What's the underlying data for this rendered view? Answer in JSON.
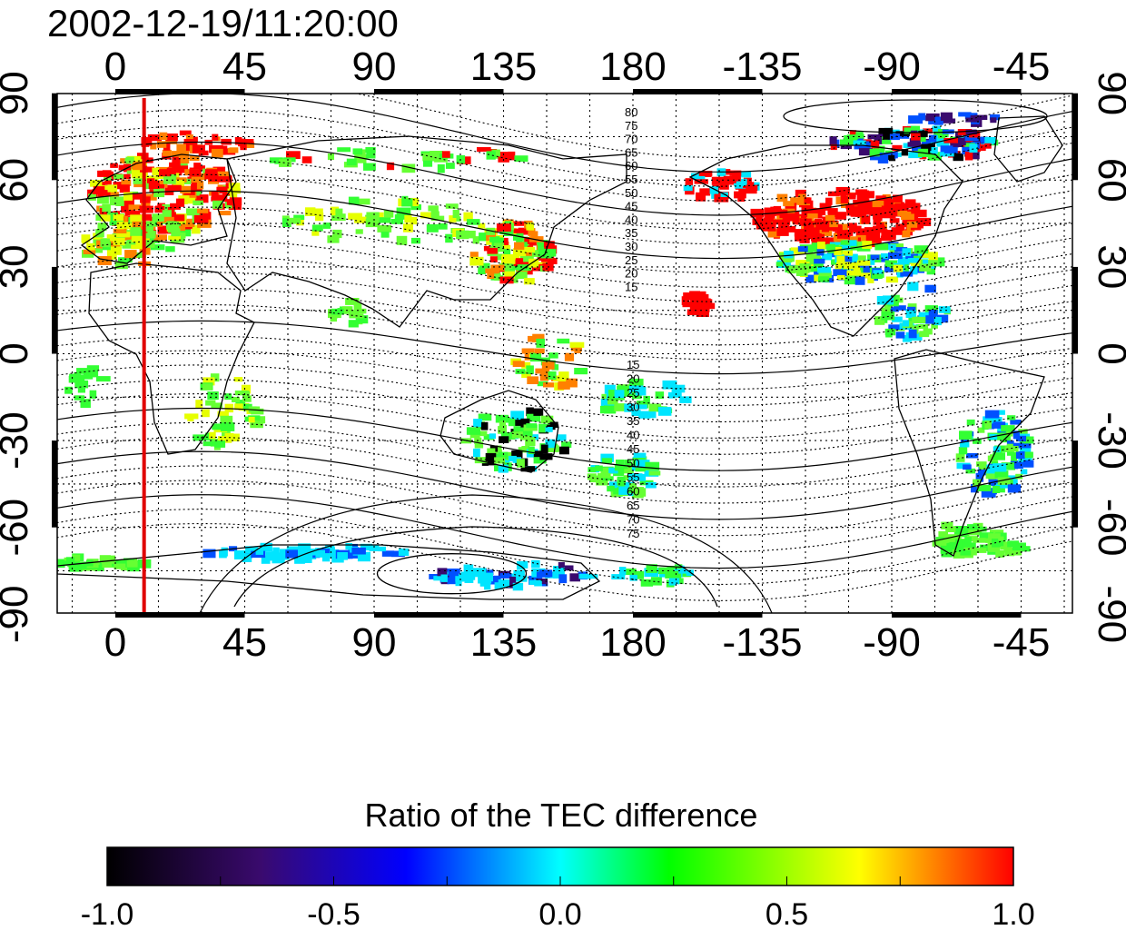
{
  "title": "2002-12-19/11:20:00",
  "map": {
    "top_x_ticks": [
      "0",
      "45",
      "90",
      "135",
      "180",
      "-135",
      "-90",
      "-45"
    ],
    "bottom_x_ticks": [
      "0",
      "45",
      "90",
      "135",
      "180",
      "-135",
      "-90",
      "-45"
    ],
    "left_y_ticks": [
      "90",
      "60",
      "30",
      "0",
      "-30",
      "-60",
      "-90"
    ],
    "right_y_ticks": [
      "90",
      "60",
      "30",
      "0",
      "-30",
      "-60",
      "-90"
    ],
    "north_contour_labels": [
      "80",
      "75",
      "70",
      "65",
      "60",
      "55",
      "50",
      "45",
      "40",
      "35",
      "30",
      "25",
      "20",
      "15"
    ],
    "south_contour_labels": [
      "15",
      "20",
      "25",
      "30",
      "35",
      "40",
      "45",
      "50",
      "55",
      "60",
      "65",
      "70",
      "75"
    ],
    "red_line_longitude": 10
  },
  "colorbar": {
    "label": "Ratio of the TEC difference",
    "tick_labels": [
      "-1.0",
      "-0.5",
      "0.0",
      "0.5",
      "1.0"
    ],
    "min": -1.0,
    "max": 1.0,
    "colors": [
      "#000000",
      "#3a0a6e",
      "#0000ff",
      "#00ffff",
      "#00ff00",
      "#ffff00",
      "#ff0000"
    ]
  },
  "colors": {
    "red_line": "#e00000",
    "coast": "#000000",
    "grid": "#000000"
  }
}
